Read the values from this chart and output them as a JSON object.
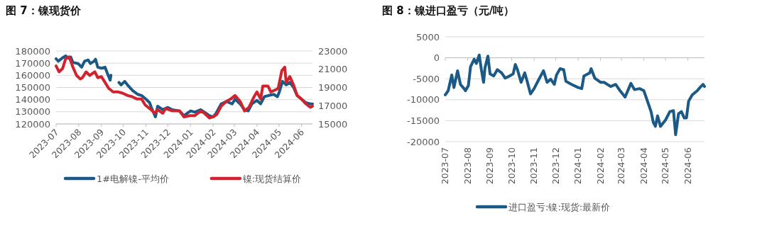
{
  "chart_data": [
    {
      "type": "line",
      "title": "图 7：镍现货价",
      "xlim": [
        "2023-07-01",
        "2024-06-16"
      ],
      "xticks": [
        "2023-07",
        "2023-08",
        "2023-09",
        "2023-10",
        "2023-11",
        "2023-12",
        "2024-01",
        "2024-02",
        "2024-03",
        "2024-04",
        "2024-05",
        "2024-06"
      ],
      "ylim": [
        120000,
        180000
      ],
      "yticks": [
        120000,
        130000,
        140000,
        150000,
        160000,
        170000,
        180000
      ],
      "y2lim": [
        15000,
        23000
      ],
      "y2ticks": [
        15000,
        17000,
        19000,
        21000,
        23000
      ],
      "grid": "y",
      "legend": "bottom",
      "line_style": "solid",
      "series": [
        {
          "name": "1#电解镍-平均价",
          "color": "#1b5a86",
          "x": [
            "2023-07-01",
            "2023-07-04",
            "2023-07-10",
            "2023-07-14",
            "2023-07-18",
            "2023-07-21",
            "2023-07-24",
            "2023-07-31",
            "2023-08-05",
            "2023-08-09",
            "2023-08-14",
            "2023-08-17",
            "2023-08-22",
            "2023-08-24",
            "2023-08-27",
            "2023-09-01",
            "2023-09-06",
            "2023-09-09",
            "2023-09-13",
            "2023-09-14",
            "2023-09-19",
            "2023-09-25",
            "2023-09-28",
            "2023-10-03",
            "2023-10-08",
            "2023-10-14",
            "2023-10-21",
            "2023-10-26",
            "2023-11-01",
            "2023-11-06",
            "2023-11-09",
            "2023-11-14",
            "2023-11-17",
            "2023-11-24",
            "2023-12-01",
            "2023-12-07",
            "2023-12-17",
            "2023-12-23",
            "2024-01-01",
            "2024-01-07",
            "2024-01-15",
            "2024-01-20",
            "2024-01-27",
            "2024-02-01",
            "2024-02-05",
            "2024-02-12",
            "2024-02-19",
            "2024-02-27",
            "2024-03-02",
            "2024-03-09",
            "2024-03-15",
            "2024-03-20",
            "2024-03-25",
            "2024-04-01",
            "2024-04-06",
            "2024-04-11",
            "2024-04-17",
            "2024-04-24",
            "2024-04-29",
            "2024-05-01",
            "2024-05-06",
            "2024-05-11",
            "2024-05-16",
            "2024-05-21",
            "2024-05-26",
            "2024-06-01",
            "2024-06-07",
            "2024-06-13",
            "2024-06-16"
          ],
          "values": [
            173600,
            171600,
            174500,
            176000,
            174000,
            175000,
            170600,
            169700,
            166700,
            171600,
            172600,
            169700,
            171600,
            173200,
            166700,
            165800,
            166700,
            161900,
            156000,
            160000,
            null,
            154100,
            152100,
            155000,
            151200,
            147300,
            144300,
            143400,
            140400,
            137500,
            132600,
            125800,
            134600,
            131700,
            133600,
            131700,
            130700,
            126800,
            130700,
            129700,
            131700,
            129700,
            126800,
            125800,
            128700,
            136500,
            138500,
            136500,
            140400,
            136500,
            131700,
            130700,
            136500,
            139400,
            136500,
            142400,
            143400,
            144300,
            142400,
            145300,
            155000,
            152100,
            154100,
            150200,
            143400,
            140400,
            137500,
            136500,
            136500
          ]
        },
        {
          "name": "镍:现货结算价",
          "color": "#d2222d",
          "axis": "y2",
          "x": [
            "2023-07-01",
            "2023-07-05",
            "2023-07-10",
            "2023-07-14",
            "2023-07-19",
            "2023-07-24",
            "2023-07-29",
            "2023-08-03",
            "2023-08-06",
            "2023-08-11",
            "2023-08-16",
            "2023-08-23",
            "2023-08-27",
            "2023-09-01",
            "2023-09-06",
            "2023-09-11",
            "2023-09-17",
            "2023-09-24",
            "2023-09-30",
            "2023-10-07",
            "2023-10-13",
            "2023-10-20",
            "2023-10-26",
            "2023-10-31",
            "2023-11-08",
            "2023-11-13",
            "2023-11-17",
            "2023-11-24",
            "2023-11-28",
            "2023-12-07",
            "2023-12-17",
            "2023-12-23",
            "2024-01-01",
            "2024-01-07",
            "2024-01-15",
            "2024-01-20",
            "2024-01-27",
            "2024-02-01",
            "2024-02-06",
            "2024-02-12",
            "2024-02-19",
            "2024-02-25",
            "2024-03-02",
            "2024-03-09",
            "2024-03-15",
            "2024-03-21",
            "2024-03-28",
            "2024-04-01",
            "2024-04-06",
            "2024-04-09",
            "2024-04-16",
            "2024-04-20",
            "2024-04-27",
            "2024-04-30",
            "2024-05-05",
            "2024-05-09",
            "2024-05-11",
            "2024-05-16",
            "2024-05-21",
            "2024-05-26",
            "2024-06-01",
            "2024-06-07",
            "2024-06-13",
            "2024-06-16"
          ],
          "values": [
            21360,
            20710,
            21100,
            22140,
            22350,
            21230,
            20320,
            19940,
            20070,
            20710,
            20320,
            20710,
            20070,
            20190,
            19550,
            18900,
            18510,
            18510,
            18380,
            18120,
            17990,
            17730,
            17730,
            17080,
            16560,
            16170,
            16560,
            16170,
            16690,
            16430,
            16430,
            15780,
            15910,
            15910,
            16430,
            16170,
            15650,
            15780,
            16040,
            16950,
            17470,
            17730,
            18120,
            17470,
            16430,
            16820,
            17990,
            18510,
            17730,
            19160,
            19160,
            18510,
            18770,
            18900,
            20840,
            21230,
            19550,
            20190,
            19290,
            18120,
            17730,
            17210,
            16820,
            16950
          ]
        }
      ]
    },
    {
      "type": "line",
      "title": "图 8：镍进口盈亏（元/吨）",
      "xlim": [
        "2023-07-01",
        "2024-06-24"
      ],
      "xticks": [
        "2023-07",
        "2023-08",
        "2023-09",
        "2023-10",
        "2023-11",
        "2023-12",
        "2024-01",
        "2024-02",
        "2024-03",
        "2024-04",
        "2024-05",
        "2024-06"
      ],
      "ylim": [
        -20000,
        5000
      ],
      "yticks": [
        -20000,
        -15000,
        -10000,
        -5000,
        0,
        5000
      ],
      "grid": "y",
      "legend": "bottom",
      "line_style": "solid",
      "series": [
        {
          "name": "进口盈亏:镍:现货:最新价",
          "color": "#1b5a86",
          "x": [
            "2023-07-01",
            "2023-07-05",
            "2023-07-10",
            "2023-07-13",
            "2023-07-18",
            "2023-07-22",
            "2023-07-27",
            "2023-07-29",
            "2023-08-02",
            "2023-08-05",
            "2023-08-10",
            "2023-08-13",
            "2023-08-17",
            "2023-08-20",
            "2023-08-23",
            "2023-08-25",
            "2023-08-29",
            "2023-09-01",
            "2023-09-06",
            "2023-09-11",
            "2023-09-17",
            "2023-09-22",
            "2023-09-28",
            "2023-10-03",
            "2023-10-06",
            "2023-10-09",
            "2023-10-14",
            "2023-10-19",
            "2023-10-22",
            "2023-10-27",
            "2023-11-01",
            "2023-11-07",
            "2023-11-14",
            "2023-11-19",
            "2023-11-24",
            "2023-11-29",
            "2023-12-02",
            "2023-12-07",
            "2023-12-12",
            "2023-12-15",
            "2023-12-23",
            "2024-01-01",
            "2024-01-06",
            "2024-01-09",
            "2024-01-17",
            "2024-01-19",
            "2024-01-24",
            "2024-02-01",
            "2024-02-06",
            "2024-02-15",
            "2024-02-22",
            "2024-02-28",
            "2024-03-06",
            "2024-03-11",
            "2024-03-14",
            "2024-03-19",
            "2024-03-26",
            "2024-04-01",
            "2024-04-06",
            "2024-04-11",
            "2024-04-14",
            "2024-04-17",
            "2024-04-20",
            "2024-04-24",
            "2024-05-01",
            "2024-05-07",
            "2024-05-12",
            "2024-05-15",
            "2024-05-19",
            "2024-05-23",
            "2024-05-27",
            "2024-05-30",
            "2024-06-02",
            "2024-06-07",
            "2024-06-14",
            "2024-06-19",
            "2024-06-22",
            "2024-06-24"
          ],
          "values": [
            -8850,
            -7850,
            -4100,
            -7100,
            -3100,
            -6350,
            -7350,
            -7850,
            -6600,
            -2100,
            -350,
            -1350,
            650,
            -2850,
            -5850,
            -2350,
            400,
            -3850,
            -4350,
            -2850,
            -3600,
            -4850,
            -4350,
            -3850,
            -1600,
            -2850,
            -5850,
            -3600,
            -5350,
            -8600,
            -7350,
            -5350,
            -3100,
            -5850,
            -5100,
            -6350,
            -4100,
            -2600,
            -2850,
            -5600,
            -6350,
            -7100,
            -7350,
            -4350,
            -3600,
            -2600,
            -4850,
            -5850,
            -5850,
            -6850,
            -6350,
            -7850,
            -9350,
            -7350,
            -6100,
            -7600,
            -7350,
            -7850,
            -10350,
            -12850,
            -15350,
            -16350,
            -13850,
            -16350,
            -14850,
            -12850,
            -12600,
            -18350,
            -13350,
            -12850,
            -14350,
            -14350,
            -10350,
            -8850,
            -7850,
            -6850,
            -6350,
            -6850
          ]
        }
      ]
    }
  ]
}
